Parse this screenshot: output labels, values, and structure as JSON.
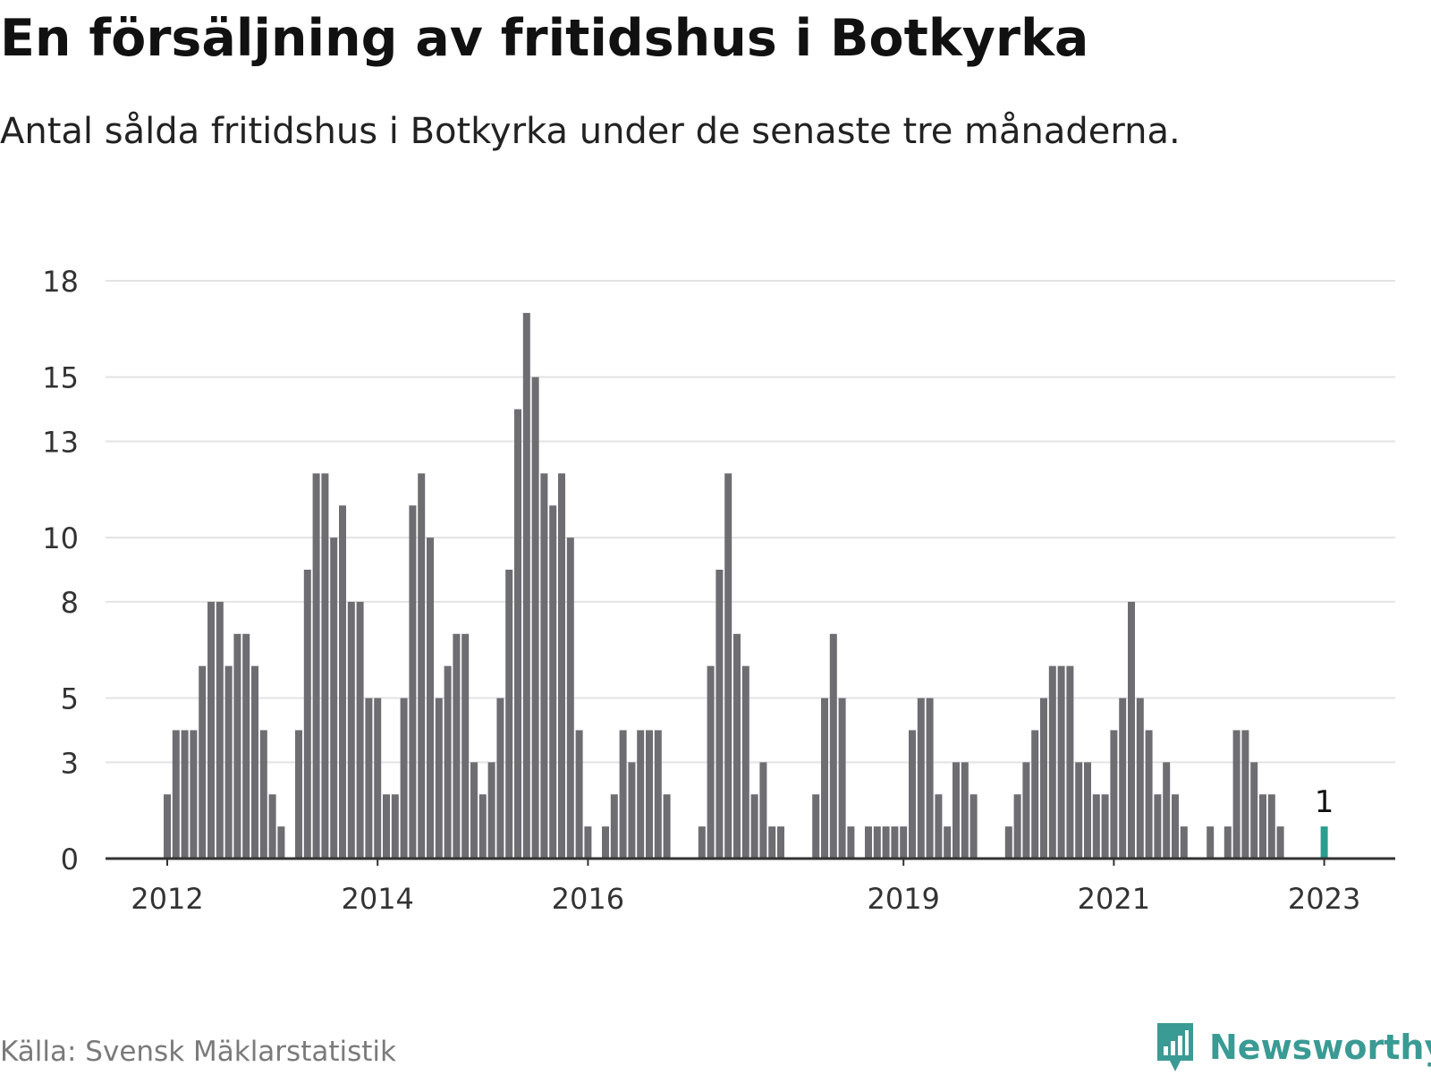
{
  "header": {
    "title": "En försäljning av fritidshus i Botkyrka",
    "subtitle": "Antal sålda fritidshus i Botkyrka under de senaste tre månaderna."
  },
  "footer": {
    "source": "Källa: Svensk Mäklarstatistik",
    "brand": "Newsworthy"
  },
  "colors": {
    "bar": "#6d6d72",
    "highlight": "#2a9d8f",
    "grid": "#e3e3e3",
    "axis": "#333333",
    "brand": "#3a9a94"
  },
  "chart_data": {
    "type": "bar",
    "title": "En försäljning av fritidshus i Botkyrka",
    "subtitle": "Antal sålda fritidshus i Botkyrka under de senaste tre månaderna.",
    "xlabel": "",
    "ylabel": "",
    "ylim": [
      0,
      18
    ],
    "y_ticks": [
      0,
      3,
      5,
      8,
      10,
      13,
      15,
      18
    ],
    "x_tick_labels": [
      {
        "label": "2012",
        "index": 0
      },
      {
        "label": "2014",
        "index": 24
      },
      {
        "label": "2016",
        "index": 48
      },
      {
        "label": "2019",
        "index": 84
      },
      {
        "label": "2021",
        "index": 108
      },
      {
        "label": "2023",
        "index": 132
      }
    ],
    "grid": true,
    "legend": "none",
    "annotation": {
      "text": "1",
      "index": 132
    },
    "highlight_index": 132,
    "values": [
      2,
      4,
      4,
      4,
      6,
      8,
      8,
      6,
      7,
      7,
      6,
      4,
      2,
      1,
      0,
      4,
      9,
      12,
      12,
      10,
      11,
      8,
      8,
      5,
      5,
      2,
      2,
      5,
      11,
      12,
      10,
      5,
      6,
      7,
      7,
      3,
      2,
      3,
      5,
      9,
      14,
      17,
      15,
      12,
      11,
      12,
      10,
      4,
      1,
      0,
      1,
      2,
      4,
      3,
      4,
      4,
      4,
      2,
      0,
      0,
      0,
      1,
      6,
      9,
      12,
      7,
      6,
      2,
      3,
      1,
      1,
      0,
      0,
      0,
      2,
      5,
      7,
      5,
      1,
      0,
      1,
      1,
      1,
      1,
      1,
      4,
      5,
      5,
      2,
      1,
      3,
      3,
      2,
      0,
      0,
      0,
      1,
      2,
      3,
      4,
      5,
      6,
      6,
      6,
      3,
      3,
      2,
      2,
      4,
      5,
      8,
      5,
      4,
      2,
      3,
      2,
      1,
      0,
      0,
      1,
      0,
      1,
      4,
      4,
      3,
      2,
      2,
      1,
      0,
      0,
      0,
      0,
      1
    ]
  }
}
